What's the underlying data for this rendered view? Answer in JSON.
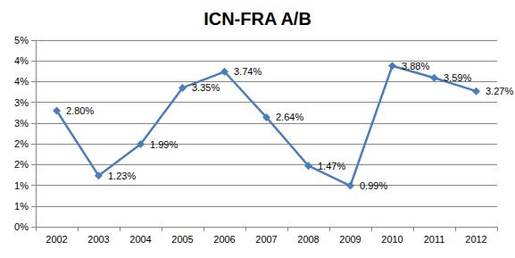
{
  "chart_data": {
    "type": "line",
    "title": "ICN-FRA A/B",
    "categories": [
      "2002",
      "2003",
      "2004",
      "2005",
      "2006",
      "2007",
      "2008",
      "2009",
      "2010",
      "2011",
      "2012"
    ],
    "values": [
      2.8,
      1.23,
      1.99,
      3.35,
      3.74,
      2.64,
      1.47,
      0.99,
      3.88,
      3.59,
      3.27
    ],
    "value_labels": [
      "2.80%",
      "1.23%",
      "1.99%",
      "3.35%",
      "3.74%",
      "2.64%",
      "1.47%",
      "0.99%",
      "3.88%",
      "3.59%",
      "3.27%"
    ],
    "data_labels": true,
    "color": "#4a7ebb",
    "marker": "diamond",
    "ylim": [
      0,
      4.5
    ],
    "yticks": [
      {
        "value": 0,
        "label": "0%"
      },
      {
        "value": 0.5,
        "label": "1%"
      },
      {
        "value": 1,
        "label": "1%"
      },
      {
        "value": 1.5,
        "label": "2%"
      },
      {
        "value": 2,
        "label": "2%"
      },
      {
        "value": 2.5,
        "label": "3%"
      },
      {
        "value": 3,
        "label": "3%"
      },
      {
        "value": 3.5,
        "label": "4%"
      },
      {
        "value": 4,
        "label": "4%"
      },
      {
        "value": 4.5,
        "label": "5%"
      }
    ],
    "grid": true
  }
}
